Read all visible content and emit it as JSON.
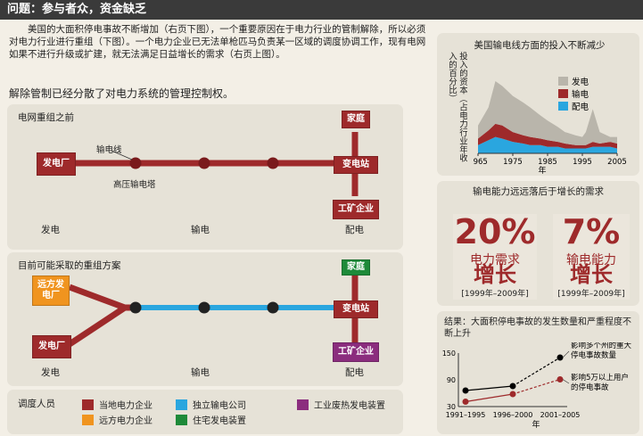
{
  "header": {
    "title": "问题：参与者众，资金缺乏"
  },
  "intro": {
    "paragraph": "美国的大面积停电事故不断增加（右页下图），一个重要原因在于电力行业的管制解除，所以必须对电力行业进行重组（下图）。一个电力企业已无法单枪匹马负责某一区域的调度协调工作，现有电网如果不进行升级或扩建，就无法满足日益增长的需求（右页上图）。",
    "subhead": "解除管制已经分散了对电力系统的管理控制权。"
  },
  "before": {
    "label": "电网重组之前",
    "power_plant": "发电厂",
    "line_label": "输电线",
    "tower_label": "高压输电塔",
    "home": "家庭",
    "substation": "变电站",
    "industry": "工矿企业",
    "col_gen": "发电",
    "col_trans": "输电",
    "col_dist": "配电"
  },
  "after": {
    "label": "目前可能采取的重组方案",
    "remote_plant": "远方发电厂",
    "power_plant": "发电厂",
    "home": "家庭",
    "substation": "变电站",
    "industry": "工矿企业",
    "col_gen": "发电",
    "col_trans": "输电",
    "col_dist": "配电"
  },
  "legend": {
    "title": "调度人员",
    "items": [
      {
        "label": "当地电力企业",
        "color": "#9e2a2b"
      },
      {
        "label": "独立输电公司",
        "color": "#2aa6df"
      },
      {
        "label": "工业废热发电装置",
        "color": "#8b2d7e"
      },
      {
        "label": "远方电力企业",
        "color": "#f0941f"
      },
      {
        "label": "住宅发电装置",
        "color": "#1e8a39"
      }
    ]
  },
  "chart_data": [
    {
      "type": "area",
      "title": "美国输电线方面的投入不断减少",
      "ylabel": "投入的资本（占电力行业年收入的百分比）",
      "xlabel": "年",
      "x": [
        1965,
        1968,
        1970,
        1972,
        1975,
        1978,
        1980,
        1983,
        1985,
        1988,
        1990,
        1993,
        1995,
        1996,
        1998,
        2000,
        2003,
        2005
      ],
      "x_ticks": [
        "1965",
        "1975",
        "1985",
        "1995",
        "2005"
      ],
      "series": [
        {
          "name": "配电",
          "color": "#2aa6df",
          "values": [
            5,
            8,
            10,
            9,
            7,
            6,
            5,
            5,
            4,
            4,
            3,
            3,
            3,
            3,
            4,
            4,
            4,
            3
          ]
        },
        {
          "name": "输电",
          "color": "#9e2a2b",
          "values": [
            4,
            6,
            8,
            8,
            6,
            5,
            5,
            4,
            4,
            3,
            3,
            2,
            2,
            2,
            3,
            2,
            3,
            3
          ]
        },
        {
          "name": "发电",
          "color": "#b9b5ab",
          "values": [
            8,
            14,
            26,
            24,
            22,
            20,
            18,
            14,
            12,
            9,
            7,
            6,
            5,
            8,
            20,
            7,
            3,
            4
          ]
        }
      ]
    },
    {
      "type": "line",
      "title": "结果：大面积停电事故的发生数量和严重程度不断上升",
      "xlabel": "年",
      "categories": [
        "1991–1995",
        "1996–2000",
        "2001–2005"
      ],
      "y_ticks": [
        30,
        90,
        150
      ],
      "ylim": [
        30,
        150
      ],
      "series": [
        {
          "label": "影响多个州的重大停电事故数量",
          "color": "#000000",
          "values": [
            66,
            76,
            140
          ]
        },
        {
          "label": "影响5万以上用户的停电事故",
          "color": "#9e2a2b",
          "values": [
            41,
            58,
            91
          ]
        }
      ]
    }
  ],
  "growth": {
    "title": "输电能力远远落后于增长的需求",
    "left": {
      "value": "20%",
      "line1": "电力需求",
      "line2": "增长",
      "range": "[1999年–2009年]"
    },
    "right": {
      "value": "7%",
      "line1": "输电能力",
      "line2": "增长",
      "range": "[1999年–2009年]"
    }
  }
}
